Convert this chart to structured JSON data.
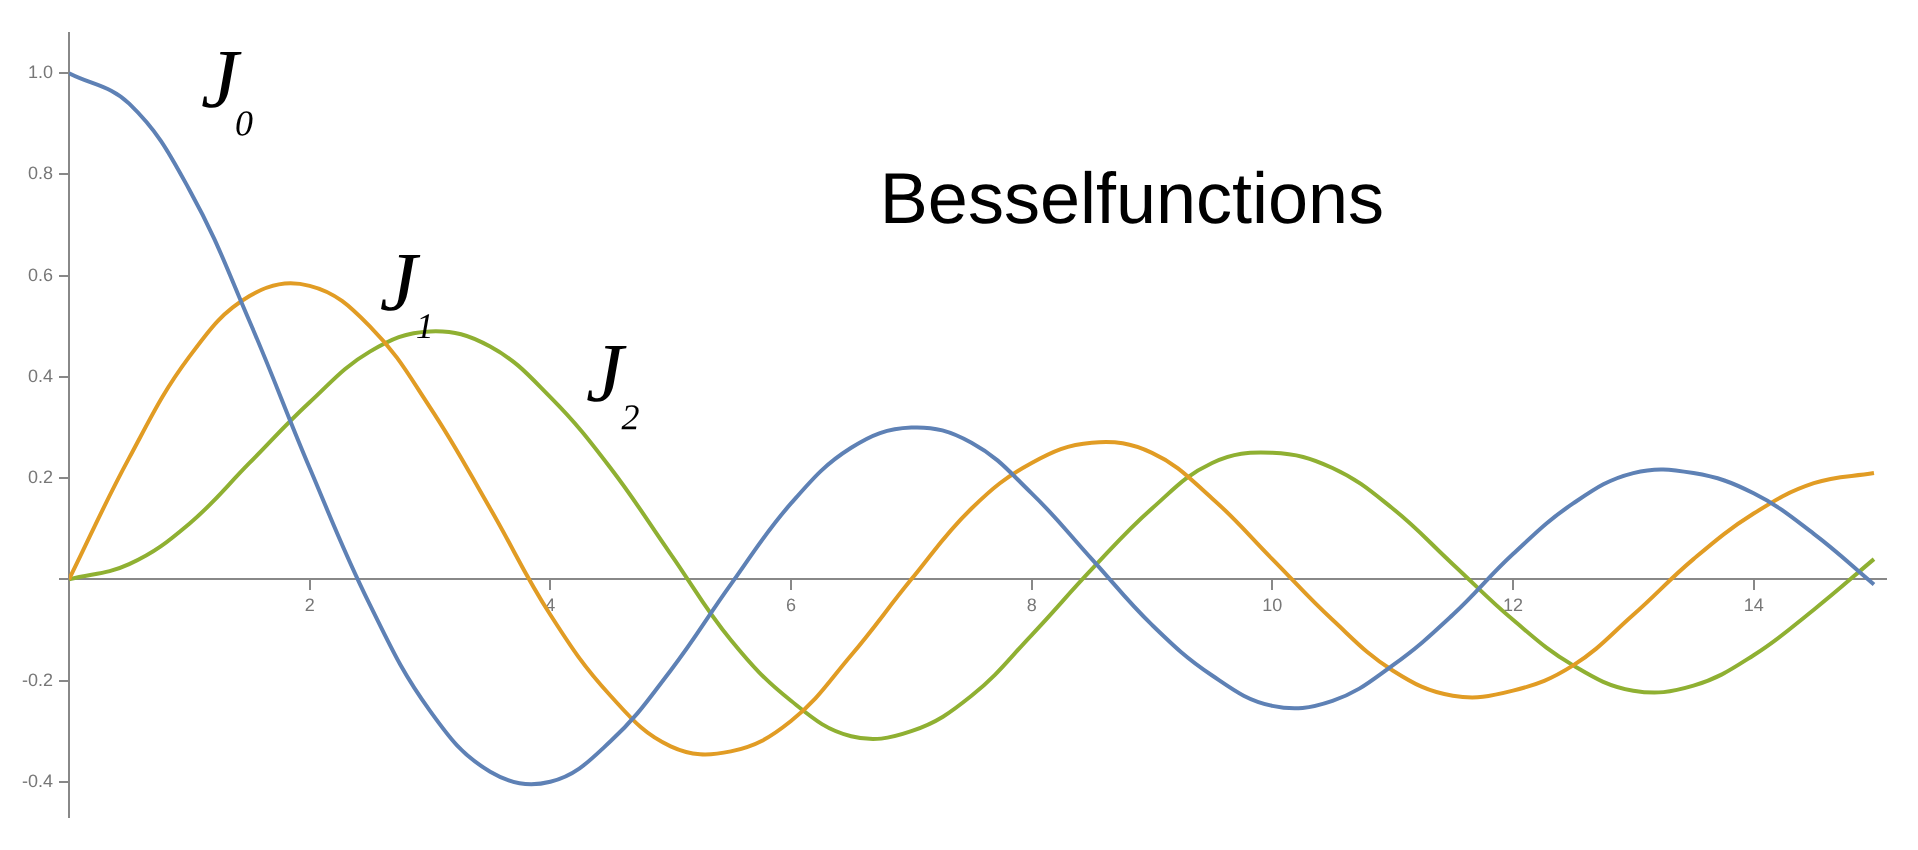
{
  "chart_data": {
    "type": "line",
    "title": "Besselfunctions",
    "x": [
      0,
      0.5,
      1,
      1.5,
      2,
      2.5,
      3,
      3.5,
      4,
      4.5,
      5,
      5.5,
      6,
      6.5,
      7,
      7.5,
      8,
      8.5,
      9,
      9.5,
      10,
      10.5,
      11,
      11.5,
      12,
      12.5,
      13,
      13.5,
      14,
      14.5,
      15
    ],
    "series": [
      {
        "name": "J₀",
        "color": "#5e81b5",
        "values": [
          1,
          0.94,
          0.77,
          0.51,
          0.22,
          -0.05,
          -0.26,
          -0.38,
          -0.4,
          -0.32,
          -0.18,
          -0.01,
          0.15,
          0.26,
          0.3,
          0.27,
          0.17,
          0.04,
          -0.09,
          -0.19,
          -0.25,
          -0.24,
          -0.17,
          -0.07,
          0.05,
          0.15,
          0.21,
          0.21,
          0.17,
          0.09,
          -0.01
        ]
      },
      {
        "name": "J₁",
        "color": "#e19c24",
        "values": [
          0,
          0.24,
          0.44,
          0.56,
          0.58,
          0.5,
          0.34,
          0.14,
          -0.07,
          -0.23,
          -0.33,
          -0.34,
          -0.28,
          -0.15,
          0,
          0.14,
          0.23,
          0.27,
          0.25,
          0.16,
          0.04,
          -0.08,
          -0.18,
          -0.23,
          -0.22,
          -0.17,
          -0.07,
          0.04,
          0.13,
          0.19,
          0.21
        ]
      },
      {
        "name": "J₂",
        "color": "#8fb032",
        "values": [
          0,
          0.03,
          0.11,
          0.23,
          0.35,
          0.45,
          0.49,
          0.46,
          0.36,
          0.22,
          0.05,
          -0.12,
          -0.24,
          -0.31,
          -0.3,
          -0.23,
          -0.11,
          0.02,
          0.14,
          0.23,
          0.25,
          0.22,
          0.14,
          0.03,
          -0.08,
          -0.17,
          -0.22,
          -0.21,
          -0.15,
          -0.06,
          0.04
        ]
      }
    ],
    "xlim": [
      0,
      15.1
    ],
    "xticks": [
      {
        "value": 0,
        "label": null
      },
      2,
      4,
      6,
      8,
      10,
      12,
      14
    ],
    "ylim": [
      -0.47,
      1.08
    ],
    "yticks": [
      -0.4,
      -0.2,
      {
        "value": 0,
        "label": null
      },
      0.2,
      0.4,
      0.6,
      0.8,
      {
        "value": 1,
        "label": "1.0"
      }
    ],
    "grid": false,
    "legend": false,
    "marker": "none",
    "line_style": "solid"
  }
}
